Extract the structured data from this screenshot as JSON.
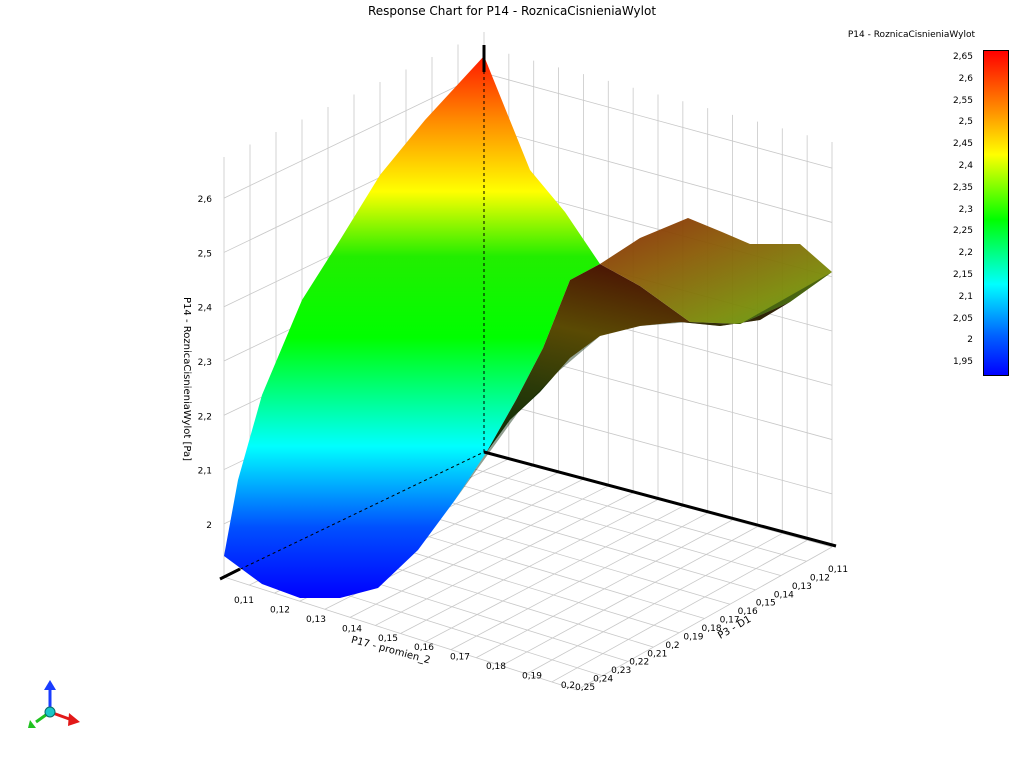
{
  "window": {
    "title": "Response Chart for P14 - RoznicaCisnieniaWylot"
  },
  "legend": {
    "title": "P14 - RoznicaCisnieniaWylot",
    "ticks": [
      "2,65",
      "2,6",
      "2,55",
      "2,5",
      "2,45",
      "2,4",
      "2,35",
      "2,3",
      "2,25",
      "2,2",
      "2,15",
      "2,1",
      "2,05",
      "2",
      "1,95"
    ],
    "colors": [
      "#ff0000",
      "#ff8c00",
      "#ffff00",
      "#00ff00",
      "#00ffff",
      "#0060ff",
      "#0000ff"
    ]
  },
  "chart_data": {
    "type": "surface3d",
    "title": "Response Chart for P14 - RoznicaCisnieniaWylot",
    "zlabel": "P14 - RoznicaCisnieniaWylot  [Pa]",
    "xlabel": "P17 - promien_2",
    "ylabel": "P3 - D1",
    "zlim": [
      1.95,
      2.65
    ],
    "z_ticks": [
      "2",
      "2,1",
      "2,2",
      "2,3",
      "2,4",
      "2,5",
      "2,6"
    ],
    "x_ticks": [
      "0,11",
      "0,12",
      "0,13",
      "0,14",
      "0,15",
      "0,16",
      "0,17",
      "0,18",
      "0,19",
      "0,2"
    ],
    "y_ticks": [
      "0,11",
      "0,12",
      "0,13",
      "0,14",
      "0,15",
      "0,16",
      "0,17",
      "0,18",
      "0,19",
      "0,2",
      "0,21",
      "0,22",
      "0,23",
      "0,24",
      "0,25"
    ],
    "grid": true,
    "surface_front_edge_p3_at_p17_min": {
      "p3": [
        0.25,
        0.2,
        0.11
      ],
      "value": [
        1.97,
        2.3,
        2.66
      ]
    },
    "surface_right_edge_p17_at_p3_min": {
      "p17": [
        0.11,
        0.15,
        0.2
      ],
      "value": [
        2.66,
        2.45,
        2.46
      ]
    },
    "surface_min_corner": {
      "p17": 0.11,
      "p3": 0.25,
      "value": 1.97
    },
    "surface_max_corner": {
      "p17": 0.11,
      "p3": 0.11,
      "value": 2.66
    }
  }
}
